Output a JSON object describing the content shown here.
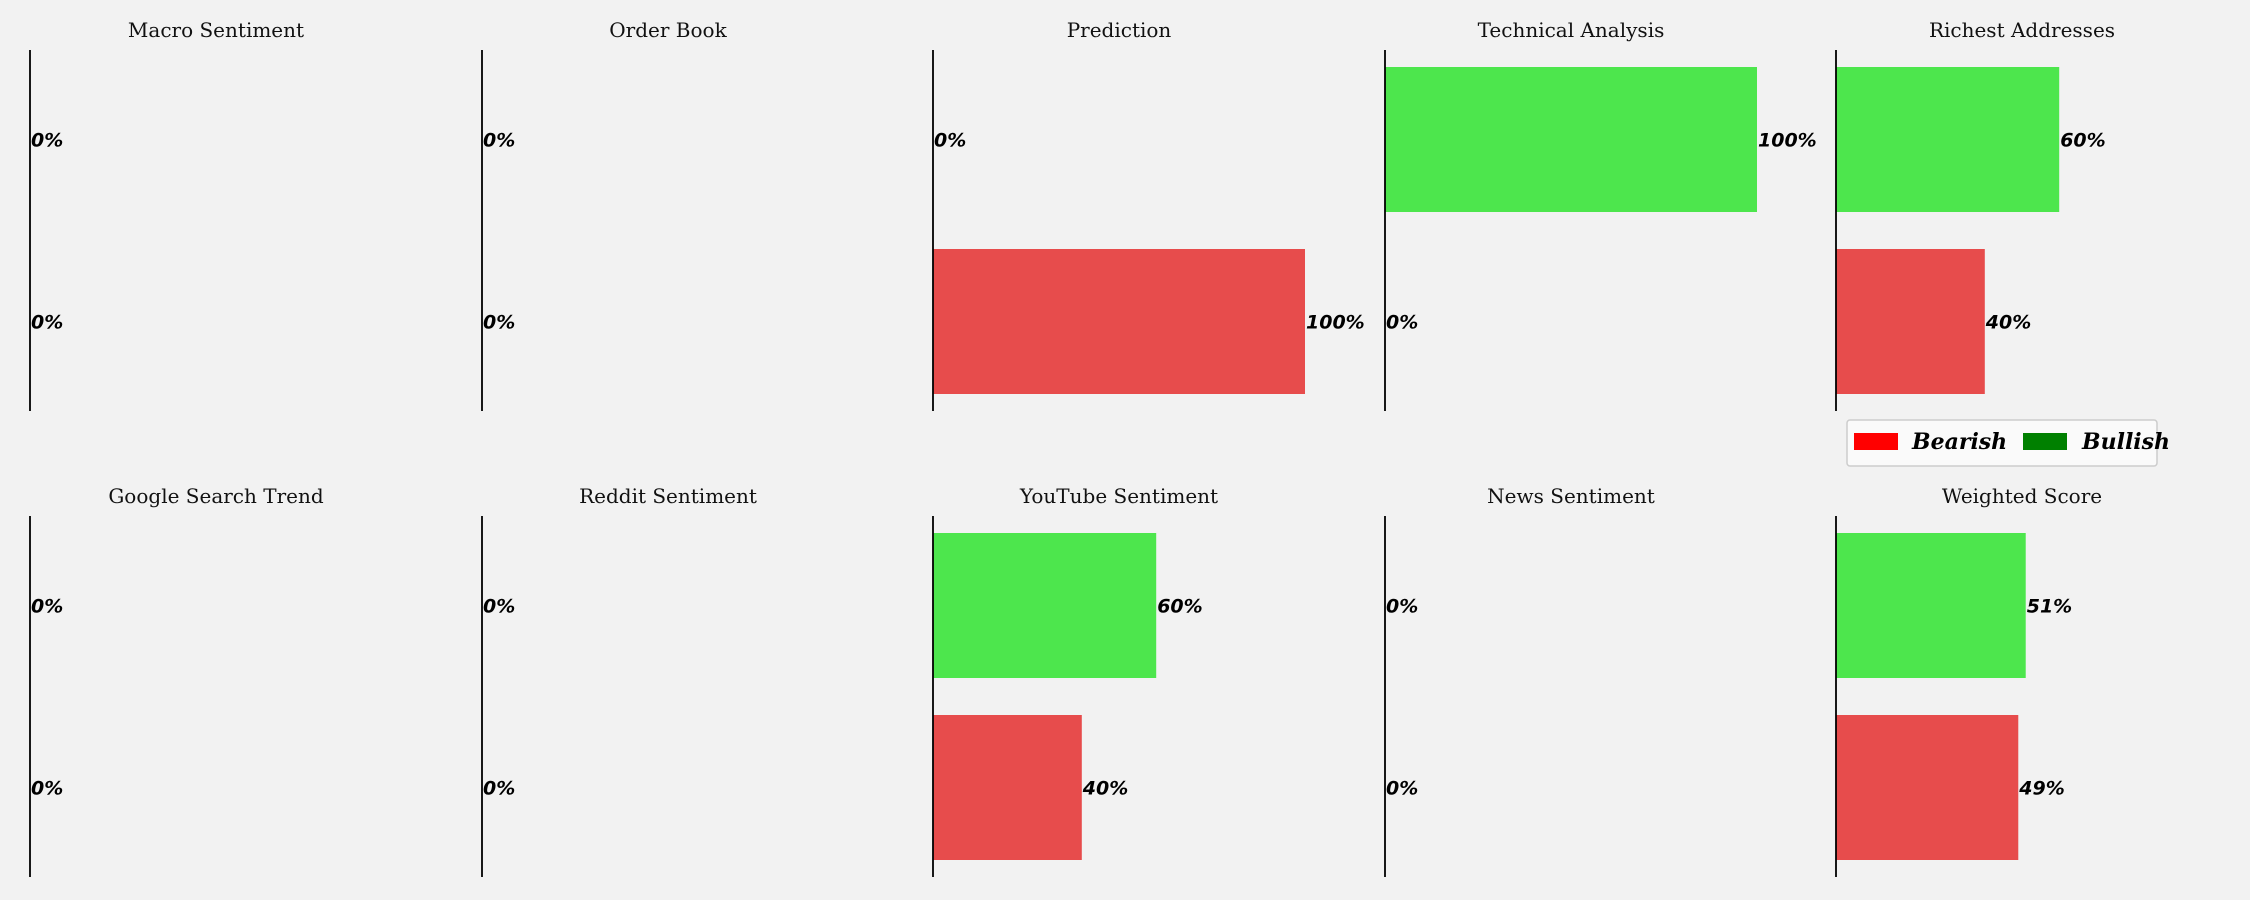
{
  "colors": {
    "bearish": "#e74c4c",
    "bullish": "#4de64d",
    "legend_bearish": "#ff0000",
    "legend_bullish": "#008000"
  },
  "legend": {
    "placement": "right, between rows",
    "bearish_label": "Bearish",
    "bullish_label": "Bullish"
  },
  "chart_data": [
    {
      "type": "bar",
      "orientation": "horizontal",
      "title": "Macro Sentiment",
      "xlim": [
        0,
        100
      ],
      "values": {
        "bullish": 0,
        "bearish": 0
      },
      "labels": {
        "bullish": "0%",
        "bearish": "0%"
      }
    },
    {
      "type": "bar",
      "orientation": "horizontal",
      "title": "Order Book",
      "xlim": [
        0,
        100
      ],
      "values": {
        "bullish": 0,
        "bearish": 0
      },
      "labels": {
        "bullish": "0%",
        "bearish": "0%"
      }
    },
    {
      "type": "bar",
      "orientation": "horizontal",
      "title": "Prediction",
      "xlim": [
        0,
        100
      ],
      "values": {
        "bullish": 0,
        "bearish": 100
      },
      "labels": {
        "bullish": "0%",
        "bearish": "100%"
      }
    },
    {
      "type": "bar",
      "orientation": "horizontal",
      "title": "Technical Analysis",
      "xlim": [
        0,
        100
      ],
      "values": {
        "bullish": 100,
        "bearish": 0
      },
      "labels": {
        "bullish": "100%",
        "bearish": "0%"
      }
    },
    {
      "type": "bar",
      "orientation": "horizontal",
      "title": "Richest Addresses",
      "xlim": [
        0,
        100
      ],
      "values": {
        "bullish": 60,
        "bearish": 40
      },
      "labels": {
        "bullish": "60%",
        "bearish": "40%"
      }
    },
    {
      "type": "bar",
      "orientation": "horizontal",
      "title": "Google Search Trend",
      "xlim": [
        0,
        100
      ],
      "values": {
        "bullish": 0,
        "bearish": 0
      },
      "labels": {
        "bullish": "0%",
        "bearish": "0%"
      }
    },
    {
      "type": "bar",
      "orientation": "horizontal",
      "title": "Reddit Sentiment",
      "xlim": [
        0,
        100
      ],
      "values": {
        "bullish": 0,
        "bearish": 0
      },
      "labels": {
        "bullish": "0%",
        "bearish": "0%"
      }
    },
    {
      "type": "bar",
      "orientation": "horizontal",
      "title": "YouTube Sentiment",
      "xlim": [
        0,
        100
      ],
      "values": {
        "bullish": 60,
        "bearish": 40
      },
      "labels": {
        "bullish": "60%",
        "bearish": "40%"
      }
    },
    {
      "type": "bar",
      "orientation": "horizontal",
      "title": "News Sentiment",
      "xlim": [
        0,
        100
      ],
      "values": {
        "bullish": 0,
        "bearish": 0
      },
      "labels": {
        "bullish": "0%",
        "bearish": "0%"
      }
    },
    {
      "type": "bar",
      "orientation": "horizontal",
      "title": "Weighted Score",
      "xlim": [
        0,
        100
      ],
      "values": {
        "bullish": 51,
        "bearish": 49
      },
      "labels": {
        "bullish": "51%",
        "bearish": "49%"
      }
    }
  ]
}
